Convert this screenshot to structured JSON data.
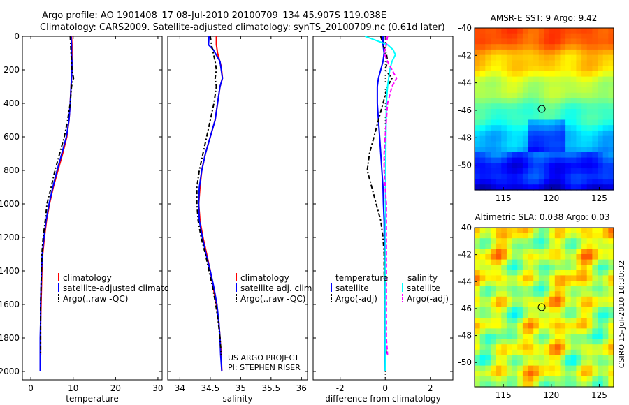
{
  "header": {
    "line1": "Argo profile: AO 1901408_17 08-Jul-2010 20100709_134 45.907S 119.038E",
    "line2": "Climatology: CARS2009. Satellite-adjusted climatology: synTS_20100709.nc (0.61d later)"
  },
  "colors": {
    "climatology": "#ff0000",
    "satellite": "#0000ff",
    "argo": "#000000",
    "sal_satellite": "#00ffff",
    "sal_argo": "#ff00ff"
  },
  "chart_data": [
    {
      "type": "line",
      "id": "temperature",
      "xlabel": "temperature",
      "xlim": [
        -2,
        31
      ],
      "xticks": [
        0,
        10,
        20,
        30
      ],
      "ylim": [
        2050,
        0
      ],
      "yticks": [
        0,
        200,
        400,
        600,
        800,
        1000,
        1200,
        1400,
        1600,
        1800,
        2000
      ],
      "legend": [
        "climatology",
        "satellite-adjusted climatology",
        "Argo(..raw -QC)"
      ],
      "series": [
        {
          "name": "climatology",
          "color": "#ff0000",
          "dash": "none",
          "points": [
            [
              9.6,
              0
            ],
            [
              9.7,
              50
            ],
            [
              9.7,
              100
            ],
            [
              9.7,
              150
            ],
            [
              9.7,
              200
            ],
            [
              9.6,
              250
            ],
            [
              9.5,
              300
            ],
            [
              9.3,
              400
            ],
            [
              9.0,
              500
            ],
            [
              8.5,
              600
            ],
            [
              7.5,
              700
            ],
            [
              6.4,
              800
            ],
            [
              5.3,
              900
            ],
            [
              4.4,
              1000
            ],
            [
              3.7,
              1100
            ],
            [
              3.2,
              1200
            ],
            [
              2.8,
              1300
            ],
            [
              2.6,
              1400
            ],
            [
              2.5,
              1500
            ],
            [
              2.4,
              1600
            ],
            [
              2.3,
              1700
            ],
            [
              2.3,
              1800
            ],
            [
              2.3,
              1900
            ]
          ]
        },
        {
          "name": "satellite-adjusted climatology",
          "color": "#0000ff",
          "dash": "none",
          "points": [
            [
              9.5,
              0
            ],
            [
              9.6,
              50
            ],
            [
              9.6,
              100
            ],
            [
              9.7,
              150
            ],
            [
              9.7,
              200
            ],
            [
              9.6,
              250
            ],
            [
              9.5,
              300
            ],
            [
              9.3,
              400
            ],
            [
              9.0,
              500
            ],
            [
              8.4,
              600
            ],
            [
              7.3,
              700
            ],
            [
              6.2,
              800
            ],
            [
              5.2,
              900
            ],
            [
              4.3,
              1000
            ],
            [
              3.6,
              1100
            ],
            [
              3.1,
              1200
            ],
            [
              2.7,
              1300
            ],
            [
              2.5,
              1400
            ],
            [
              2.4,
              1500
            ],
            [
              2.3,
              1600
            ],
            [
              2.3,
              1700
            ],
            [
              2.2,
              1800
            ],
            [
              2.2,
              2000
            ]
          ]
        },
        {
          "name": "Argo(..raw -QC)",
          "color": "#000000",
          "dash": "6,3,2,3",
          "points": [
            [
              9.3,
              0
            ],
            [
              9.4,
              50
            ],
            [
              9.5,
              100
            ],
            [
              9.6,
              150
            ],
            [
              9.7,
              200
            ],
            [
              10.1,
              250
            ],
            [
              9.6,
              300
            ],
            [
              9.3,
              400
            ],
            [
              8.7,
              500
            ],
            [
              7.9,
              600
            ],
            [
              6.8,
              700
            ],
            [
              5.7,
              800
            ],
            [
              4.8,
              900
            ],
            [
              3.8,
              1000
            ],
            [
              3.4,
              1100
            ],
            [
              2.9,
              1200
            ],
            [
              2.6,
              1300
            ],
            [
              2.5,
              1400
            ],
            [
              2.4,
              1500
            ],
            [
              2.3,
              1600
            ],
            [
              2.3,
              1700
            ],
            [
              2.3,
              1800
            ],
            [
              2.3,
              1900
            ]
          ]
        }
      ]
    },
    {
      "type": "line",
      "id": "salinity",
      "xlabel": "salinity",
      "xlim": [
        33.8,
        36.1
      ],
      "xticks": [
        34,
        34.5,
        35,
        35.5,
        36
      ],
      "xticklabels": [
        "34",
        "34.5",
        "35",
        "35.5",
        "36"
      ],
      "ylim": [
        2050,
        0
      ],
      "legend": [
        "climatology",
        "satellite adj. clim.",
        "Argo(..raw -QC)"
      ],
      "series": [
        {
          "name": "climatology",
          "color": "#ff0000",
          "dash": "none",
          "points": [
            [
              34.6,
              0
            ],
            [
              34.6,
              50
            ],
            [
              34.62,
              100
            ],
            [
              34.68,
              180
            ],
            [
              34.7,
              250
            ],
            [
              34.66,
              300
            ],
            [
              34.62,
              400
            ],
            [
              34.58,
              500
            ],
            [
              34.5,
              600
            ],
            [
              34.42,
              700
            ],
            [
              34.36,
              800
            ],
            [
              34.33,
              900
            ],
            [
              34.31,
              1000
            ],
            [
              34.33,
              1100
            ],
            [
              34.38,
              1200
            ],
            [
              34.44,
              1300
            ],
            [
              34.5,
              1400
            ],
            [
              34.55,
              1500
            ],
            [
              34.6,
              1600
            ],
            [
              34.64,
              1700
            ],
            [
              34.66,
              1800
            ],
            [
              34.68,
              1900
            ],
            [
              34.69,
              2000
            ]
          ]
        },
        {
          "name": "satellite adj. clim.",
          "color": "#0000ff",
          "dash": "none",
          "points": [
            [
              34.48,
              0
            ],
            [
              34.47,
              50
            ],
            [
              34.55,
              80
            ],
            [
              34.66,
              150
            ],
            [
              34.7,
              250
            ],
            [
              34.66,
              300
            ],
            [
              34.62,
              400
            ],
            [
              34.58,
              500
            ],
            [
              34.5,
              600
            ],
            [
              34.42,
              700
            ],
            [
              34.36,
              800
            ],
            [
              34.32,
              900
            ],
            [
              34.31,
              1000
            ],
            [
              34.32,
              1100
            ],
            [
              34.37,
              1200
            ],
            [
              34.43,
              1300
            ],
            [
              34.5,
              1400
            ],
            [
              34.56,
              1500
            ],
            [
              34.61,
              1600
            ],
            [
              34.64,
              1700
            ],
            [
              34.66,
              1800
            ],
            [
              34.67,
              1900
            ],
            [
              34.69,
              2000
            ]
          ]
        },
        {
          "name": "Argo(..raw -QC)",
          "color": "#000000",
          "dash": "6,3,2,3",
          "points": [
            [
              34.5,
              0
            ],
            [
              34.52,
              50
            ],
            [
              34.55,
              100
            ],
            [
              34.58,
              150
            ],
            [
              34.6,
              200
            ],
            [
              34.58,
              250
            ],
            [
              34.6,
              300
            ],
            [
              34.56,
              400
            ],
            [
              34.5,
              500
            ],
            [
              34.44,
              600
            ],
            [
              34.38,
              700
            ],
            [
              34.35,
              750
            ],
            [
              34.32,
              800
            ],
            [
              34.28,
              900
            ],
            [
              34.28,
              1000
            ],
            [
              34.3,
              1100
            ],
            [
              34.35,
              1200
            ],
            [
              34.42,
              1300
            ],
            [
              34.48,
              1400
            ],
            [
              34.54,
              1500
            ],
            [
              34.59,
              1600
            ],
            [
              34.63,
              1700
            ],
            [
              34.66,
              1800
            ],
            [
              34.68,
              1900
            ]
          ]
        }
      ]
    },
    {
      "type": "line",
      "id": "difference",
      "xlabel": "difference from climatology",
      "xlim": [
        -3.2,
        3.0
      ],
      "xticks": [
        -2,
        0,
        2
      ],
      "ylim": [
        2050,
        0
      ],
      "legend_titles": [
        "temperature",
        "salinity"
      ],
      "legend_temperature": [
        "satellite",
        "Argo(-adj)"
      ],
      "legend_salinity": [
        "satellite",
        "Argo(-adj)"
      ],
      "zero_line": true,
      "series": [
        {
          "name": "temperature satellite",
          "color": "#0000ff",
          "dash": "none",
          "points": [
            [
              -0.1,
              0
            ],
            [
              -0.1,
              50
            ],
            [
              -0.05,
              100
            ],
            [
              -0.1,
              150
            ],
            [
              -0.2,
              200
            ],
            [
              -0.3,
              250
            ],
            [
              -0.35,
              300
            ],
            [
              -0.35,
              400
            ],
            [
              -0.3,
              500
            ],
            [
              -0.25,
              600
            ],
            [
              -0.2,
              700
            ],
            [
              -0.15,
              800
            ],
            [
              -0.1,
              900
            ],
            [
              -0.08,
              1000
            ],
            [
              -0.05,
              1100
            ],
            [
              -0.04,
              1200
            ],
            [
              -0.03,
              1400
            ],
            [
              -0.03,
              1600
            ],
            [
              -0.02,
              1800
            ],
            [
              0.0,
              2000
            ]
          ]
        },
        {
          "name": "temperature Argo(-adj)",
          "color": "#000000",
          "dash": "6,3,2,3",
          "points": [
            [
              -0.2,
              0
            ],
            [
              -0.1,
              50
            ],
            [
              0.05,
              100
            ],
            [
              0.1,
              150
            ],
            [
              0.0,
              200
            ],
            [
              0.3,
              250
            ],
            [
              0.1,
              300
            ],
            [
              -0.1,
              400
            ],
            [
              -0.3,
              500
            ],
            [
              -0.5,
              600
            ],
            [
              -0.7,
              700
            ],
            [
              -0.8,
              800
            ],
            [
              -0.6,
              900
            ],
            [
              -0.4,
              1000
            ],
            [
              -0.2,
              1100
            ],
            [
              -0.1,
              1200
            ],
            [
              -0.05,
              1300
            ],
            [
              -0.05,
              1400
            ],
            [
              0.0,
              1600
            ],
            [
              0.0,
              1800
            ],
            [
              0.05,
              1900
            ]
          ]
        },
        {
          "name": "salinity satellite",
          "color": "#00ffff",
          "dash": "none",
          "points": [
            [
              -0.9,
              0
            ],
            [
              -0.5,
              20
            ],
            [
              0.1,
              50
            ],
            [
              0.35,
              80
            ],
            [
              0.45,
              110
            ],
            [
              0.3,
              150
            ],
            [
              0.2,
              200
            ],
            [
              0.1,
              300
            ],
            [
              0.05,
              400
            ],
            [
              0.03,
              600
            ],
            [
              0.02,
              800
            ],
            [
              0.01,
              1000
            ],
            [
              0.01,
              1200
            ],
            [
              0.0,
              1400
            ],
            [
              0.0,
              1600
            ],
            [
              0.0,
              1800
            ],
            [
              0.0,
              2000
            ]
          ]
        },
        {
          "name": "salinity Argo(-adj)",
          "color": "#ff00ff",
          "dash": "6,3",
          "points": [
            [
              0.1,
              0
            ],
            [
              0.05,
              50
            ],
            [
              -0.05,
              100
            ],
            [
              0.1,
              150
            ],
            [
              0.3,
              200
            ],
            [
              0.5,
              250
            ],
            [
              0.3,
              300
            ],
            [
              0.1,
              400
            ],
            [
              0.05,
              500
            ],
            [
              0.0,
              600
            ],
            [
              -0.05,
              700
            ],
            [
              -0.05,
              800
            ],
            [
              0.0,
              900
            ],
            [
              0.05,
              1000
            ],
            [
              0.05,
              1200
            ],
            [
              0.05,
              1400
            ],
            [
              0.05,
              1600
            ],
            [
              0.05,
              1800
            ],
            [
              0.1,
              1900
            ]
          ]
        }
      ]
    },
    {
      "type": "heatmap",
      "id": "sst_map",
      "title": "AMSR-E SST: 9 Argo: 9.42",
      "xlim": [
        112,
        126.5
      ],
      "ylim": [
        -51.8,
        -40
      ],
      "xticks": [
        115,
        120,
        125
      ],
      "yticks": [
        -40,
        -42,
        -44,
        -46,
        -48,
        -50
      ],
      "marker": [
        119.0,
        -45.9
      ]
    },
    {
      "type": "heatmap",
      "id": "sla_map",
      "title": "Altimetric SLA: 0.038 Argo: 0.03",
      "xlim": [
        112,
        126.5
      ],
      "ylim": [
        -51.8,
        -40
      ],
      "xticks": [
        115,
        120,
        125
      ],
      "yticks": [
        -40,
        -42,
        -44,
        -46,
        -48,
        -50
      ],
      "marker": [
        119.0,
        -45.9
      ]
    }
  ],
  "footer": {
    "project": "US ARGO PROJECT",
    "pi": "PI: STEPHEN RISER",
    "stamp": "CSIRO 15-Jul-2010 10:30:32"
  }
}
